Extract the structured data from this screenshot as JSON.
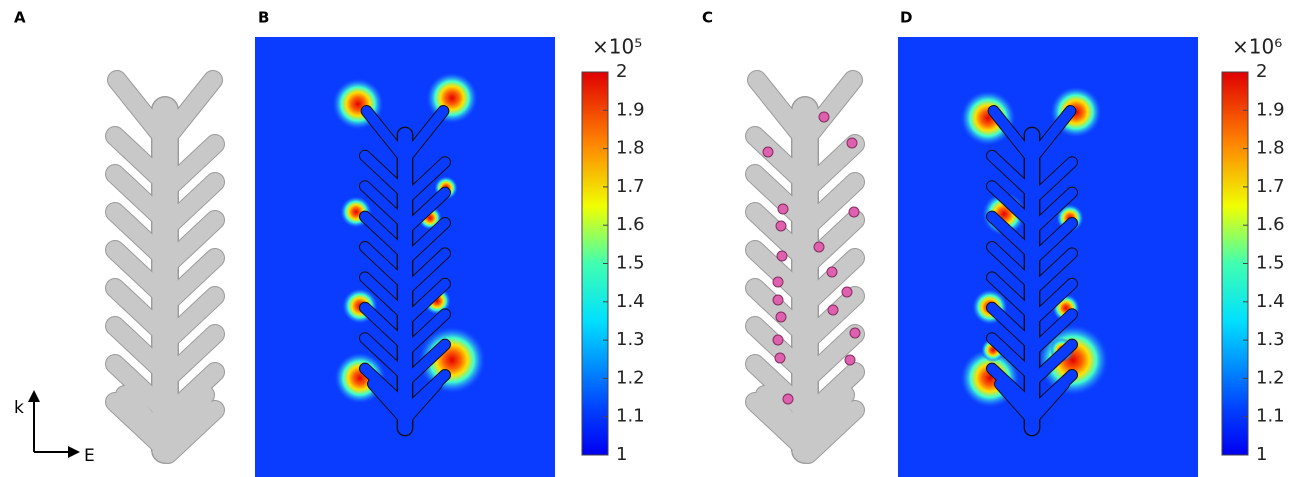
{
  "panels": [
    {
      "label": "A"
    },
    {
      "label": "B"
    },
    {
      "label": "C"
    },
    {
      "label": "D"
    }
  ],
  "axes": {
    "vertical": "k",
    "horizontal": "E"
  },
  "colorbars": [
    {
      "multiplier": "×10⁵",
      "range": [
        1,
        2
      ],
      "ticks": [
        1,
        1.1,
        1.2,
        1.3,
        1.4,
        1.5,
        1.6,
        1.7,
        1.8,
        1.9,
        2
      ]
    },
    {
      "multiplier": "×10⁶",
      "range": [
        1,
        2
      ],
      "ticks": [
        1,
        1.1,
        1.2,
        1.3,
        1.4,
        1.5,
        1.6,
        1.7,
        1.8,
        1.9,
        2
      ]
    }
  ]
}
